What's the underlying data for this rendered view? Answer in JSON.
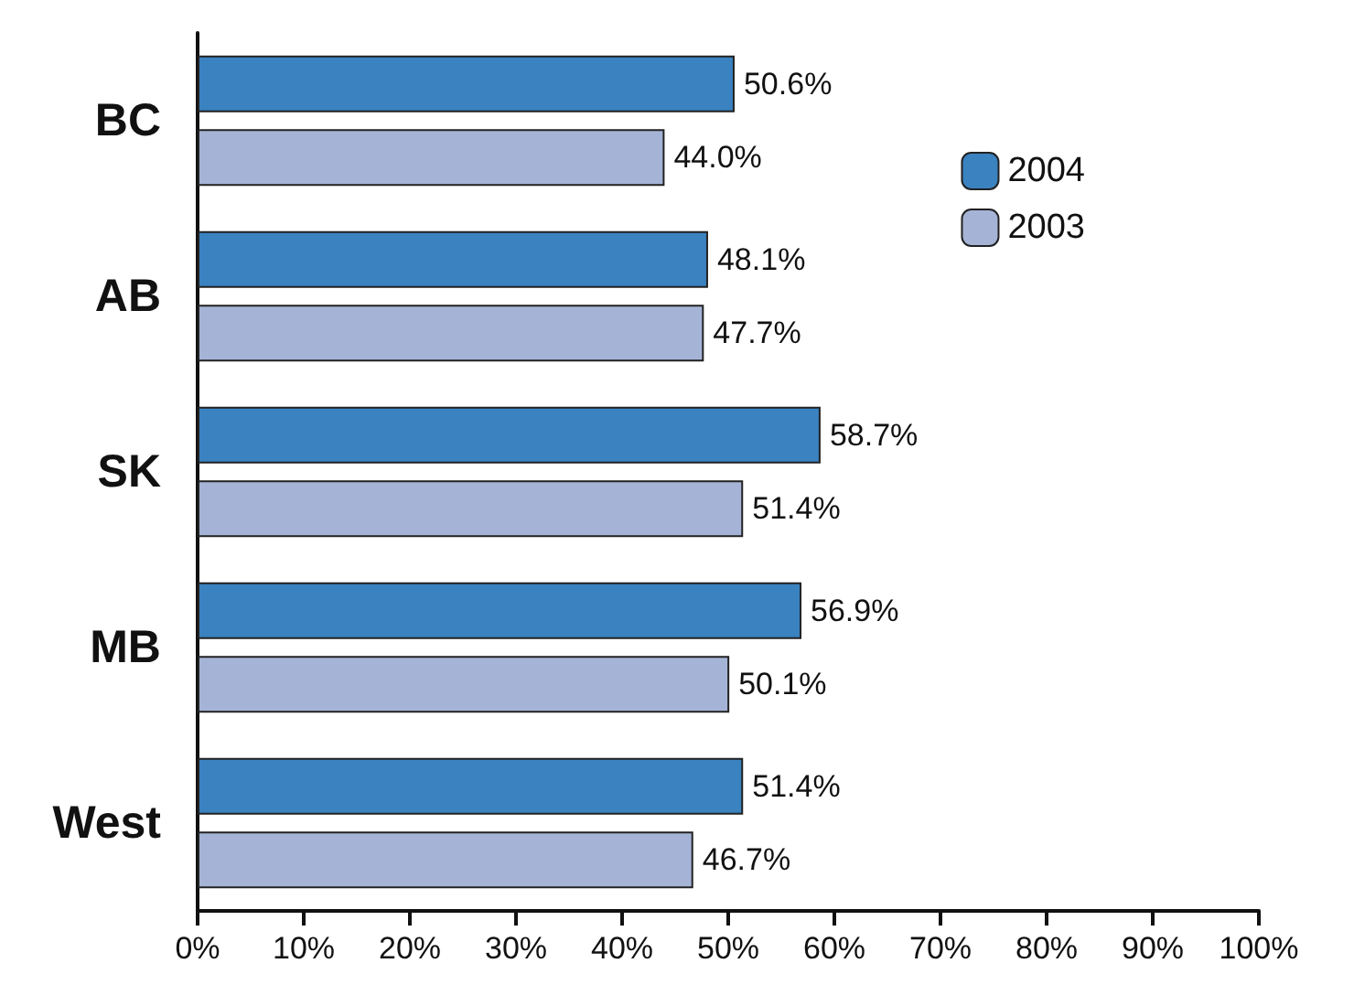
{
  "chart_data": {
    "type": "bar",
    "orientation": "horizontal",
    "categories": [
      "BC",
      "AB",
      "SK",
      "MB",
      "West"
    ],
    "series": [
      {
        "name": "2004",
        "color": "#3a82c0",
        "values": [
          50.6,
          48.1,
          58.7,
          56.9,
          51.4
        ],
        "value_labels": [
          "50.6%",
          "48.1%",
          "58.7%",
          "56.9%",
          "51.4%"
        ]
      },
      {
        "name": "2003",
        "color": "#a5b4d6",
        "values": [
          44.0,
          47.7,
          51.4,
          50.1,
          46.7
        ],
        "value_labels": [
          "44.0%",
          "47.7%",
          "51.4%",
          "50.1%",
          "46.7%"
        ]
      }
    ],
    "xlim": [
      0,
      100
    ],
    "xticks": [
      {
        "value": 0,
        "label": "0%"
      },
      {
        "value": 10,
        "label": "10%"
      },
      {
        "value": 20,
        "label": "20%"
      },
      {
        "value": 30,
        "label": "30%"
      },
      {
        "value": 40,
        "label": "40%"
      },
      {
        "value": 50,
        "label": "50%"
      },
      {
        "value": 60,
        "label": "60%"
      },
      {
        "value": 70,
        "label": "70%"
      },
      {
        "value": 80,
        "label": "80%"
      },
      {
        "value": 90,
        "label": "90%"
      },
      {
        "value": 100,
        "label": "100%"
      }
    ],
    "legend": "top right",
    "grid": false
  }
}
